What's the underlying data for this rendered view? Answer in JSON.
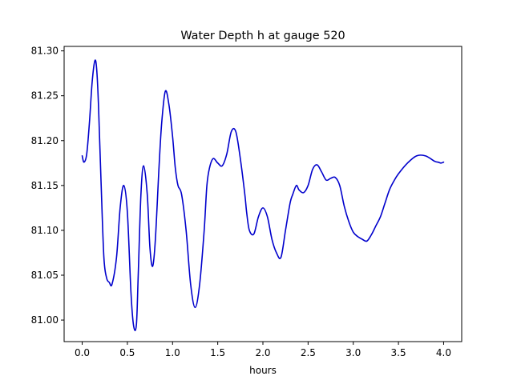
{
  "chart_data": {
    "type": "line",
    "title": "Water Depth h at gauge 520",
    "xlabel": "hours",
    "ylabel": "",
    "xlim": [
      -0.2,
      4.2
    ],
    "ylim": [
      80.976,
      81.305
    ],
    "grid": false,
    "xticks": [
      0.0,
      0.5,
      1.0,
      1.5,
      2.0,
      2.5,
      3.0,
      3.5,
      4.0
    ],
    "xtick_labels": [
      "0.0",
      "0.5",
      "1.0",
      "1.5",
      "2.0",
      "2.5",
      "3.0",
      "3.5",
      "4.0"
    ],
    "yticks": [
      81.0,
      81.05,
      81.1,
      81.15,
      81.2,
      81.25,
      81.3
    ],
    "ytick_labels": [
      "81.00",
      "81.05",
      "81.10",
      "81.15",
      "81.20",
      "81.25",
      "81.30"
    ],
    "series": [
      {
        "color": "#0000cc",
        "x": [
          0.0,
          0.02,
          0.05,
          0.08,
          0.11,
          0.14,
          0.16,
          0.18,
          0.21,
          0.24,
          0.27,
          0.3,
          0.33,
          0.38,
          0.42,
          0.46,
          0.5,
          0.54,
          0.57,
          0.6,
          0.62,
          0.65,
          0.68,
          0.72,
          0.75,
          0.78,
          0.81,
          0.85,
          0.88,
          0.92,
          0.96,
          1.0,
          1.03,
          1.06,
          1.1,
          1.15,
          1.2,
          1.25,
          1.3,
          1.35,
          1.38,
          1.41,
          1.45,
          1.5,
          1.55,
          1.6,
          1.65,
          1.7,
          1.75,
          1.8,
          1.82,
          1.85,
          1.9,
          1.95,
          2.0,
          2.05,
          2.1,
          2.15,
          2.2,
          2.25,
          2.3,
          2.33,
          2.37,
          2.4,
          2.45,
          2.5,
          2.55,
          2.6,
          2.65,
          2.7,
          2.75,
          2.8,
          2.85,
          2.9,
          2.95,
          3.0,
          3.05,
          3.1,
          3.15,
          3.2,
          3.25,
          3.3,
          3.35,
          3.4,
          3.45,
          3.5,
          3.6,
          3.7,
          3.8,
          3.9,
          3.94,
          3.97,
          4.0
        ],
        "y": [
          81.183,
          81.176,
          81.185,
          81.22,
          81.265,
          81.289,
          81.28,
          81.24,
          81.15,
          81.07,
          81.047,
          81.042,
          81.04,
          81.07,
          81.125,
          81.15,
          81.12,
          81.03,
          80.993,
          80.995,
          81.05,
          81.14,
          81.172,
          81.14,
          81.08,
          81.06,
          81.09,
          81.17,
          81.22,
          81.255,
          81.24,
          81.205,
          81.17,
          81.15,
          81.14,
          81.1,
          81.04,
          81.014,
          81.04,
          81.1,
          81.15,
          81.17,
          81.18,
          81.175,
          81.172,
          81.185,
          81.21,
          81.21,
          81.18,
          81.14,
          81.12,
          81.1,
          81.096,
          81.115,
          81.125,
          81.115,
          81.09,
          81.075,
          81.07,
          81.1,
          81.13,
          81.14,
          81.15,
          81.145,
          81.142,
          81.15,
          81.168,
          81.173,
          81.165,
          81.156,
          81.158,
          81.159,
          81.15,
          81.127,
          81.11,
          81.098,
          81.093,
          81.09,
          81.088,
          81.095,
          81.105,
          81.115,
          81.13,
          81.145,
          81.155,
          81.163,
          81.175,
          81.183,
          81.183,
          81.177,
          81.176,
          81.175,
          81.176
        ]
      }
    ]
  }
}
